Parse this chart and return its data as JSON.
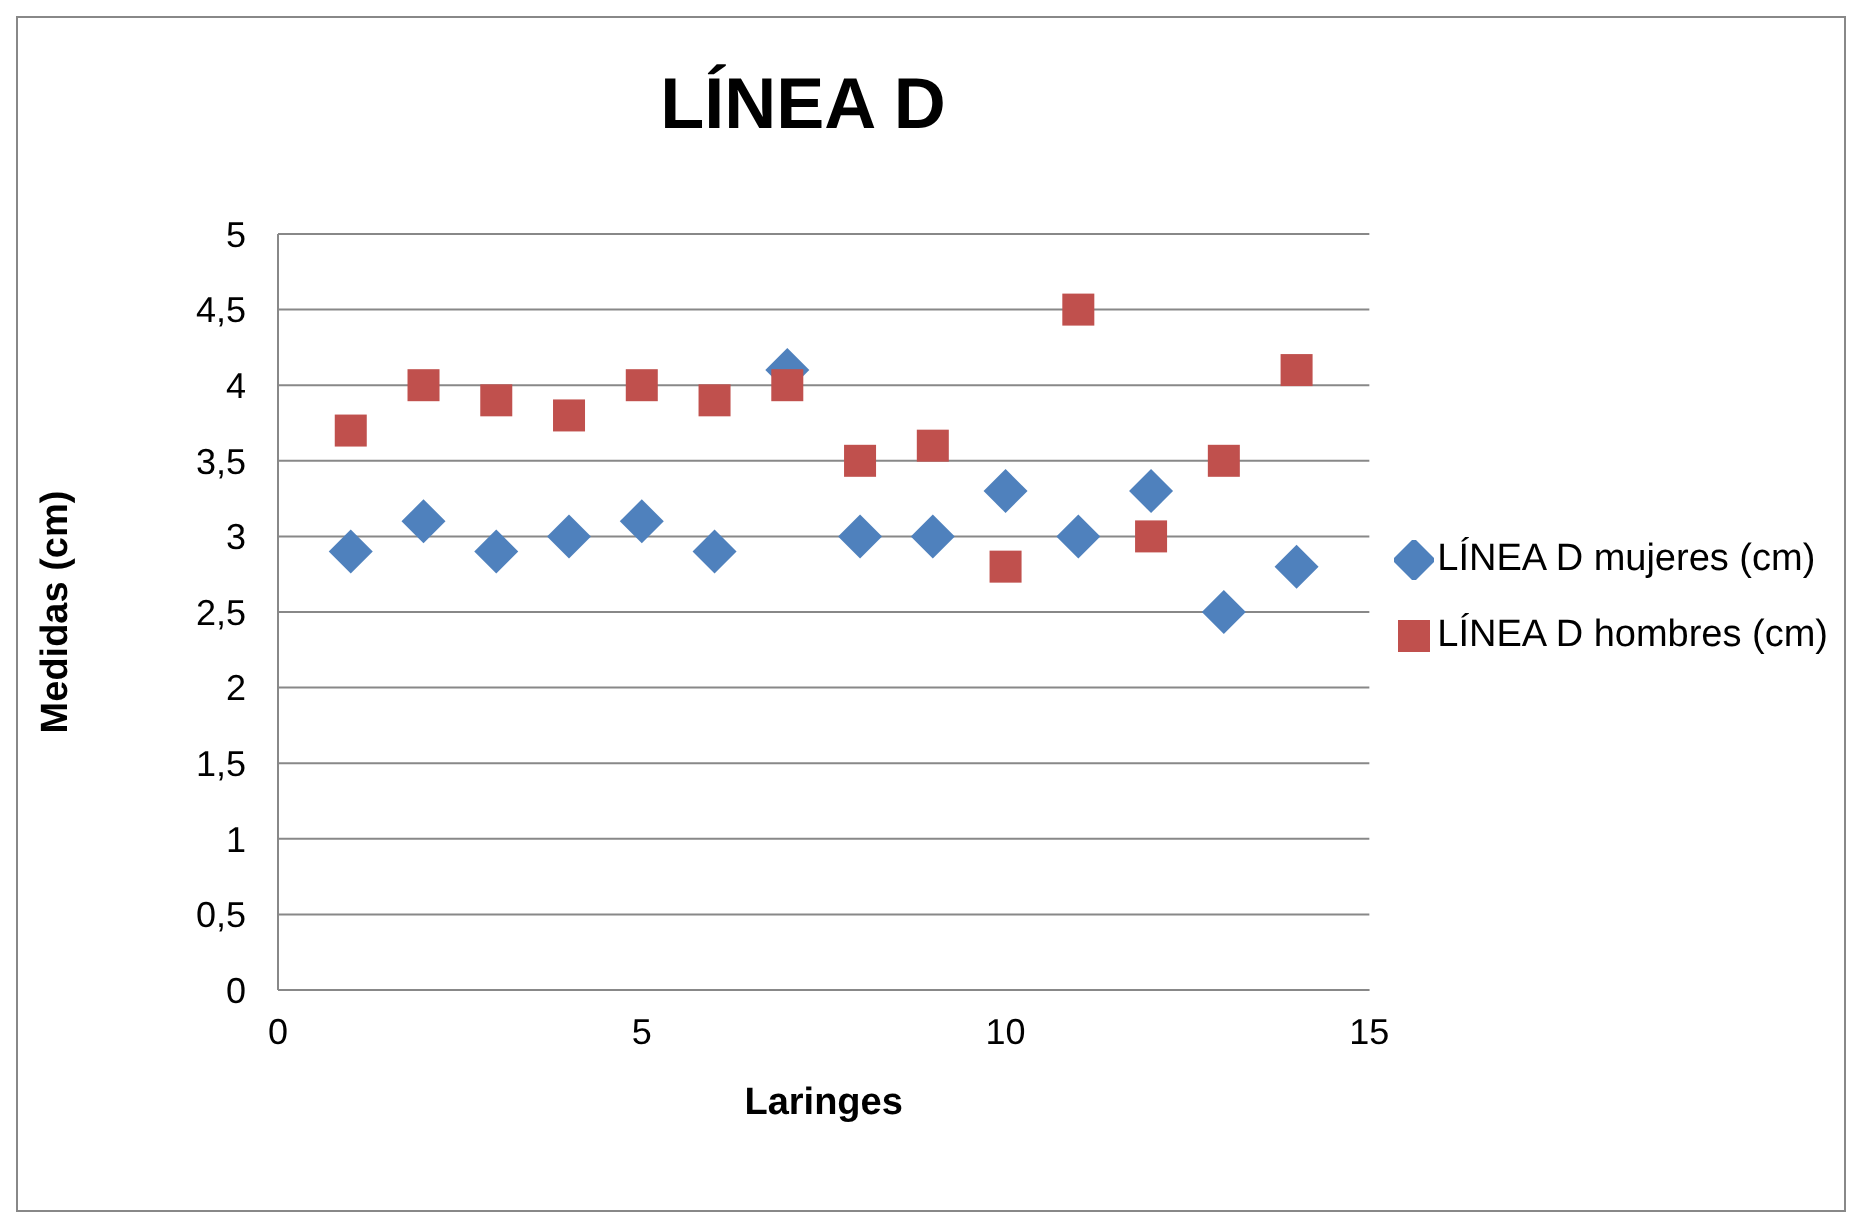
{
  "chart_data": {
    "type": "scatter",
    "title": "LÍNEA D",
    "xlabel": "Laringes",
    "ylabel": "Medidas (cm)",
    "x": [
      1,
      2,
      3,
      4,
      5,
      6,
      7,
      8,
      9,
      10,
      11,
      12,
      13,
      14
    ],
    "series": [
      {
        "name": "LÍNEA D mujeres (cm)",
        "color": "#4f81bd",
        "marker": "diamond",
        "values": [
          2.9,
          3.1,
          2.9,
          3.0,
          3.1,
          2.9,
          4.1,
          3.0,
          3.0,
          3.3,
          3.0,
          3.3,
          2.5,
          2.8
        ]
      },
      {
        "name": "LÍNEA D hombres (cm)",
        "color": "#c0504d",
        "marker": "square",
        "values": [
          3.7,
          4.0,
          3.9,
          3.8,
          4.0,
          3.9,
          4.0,
          3.5,
          3.6,
          2.8,
          4.5,
          3.0,
          3.5,
          4.1
        ]
      }
    ],
    "xlim": [
      0,
      15
    ],
    "xticks": [
      0,
      5,
      10,
      15
    ],
    "ylim": [
      0,
      5
    ],
    "yticks": [
      0,
      {
        "value": 0.5,
        "label": "0,5"
      },
      1,
      {
        "value": 1.5,
        "label": "1,5"
      },
      2,
      {
        "value": 2.5,
        "label": "2,5"
      },
      3,
      {
        "value": 3.5,
        "label": "3,5"
      },
      4,
      {
        "value": 4.5,
        "label": "4,5"
      },
      5
    ],
    "grid": "y",
    "legend": "right"
  }
}
